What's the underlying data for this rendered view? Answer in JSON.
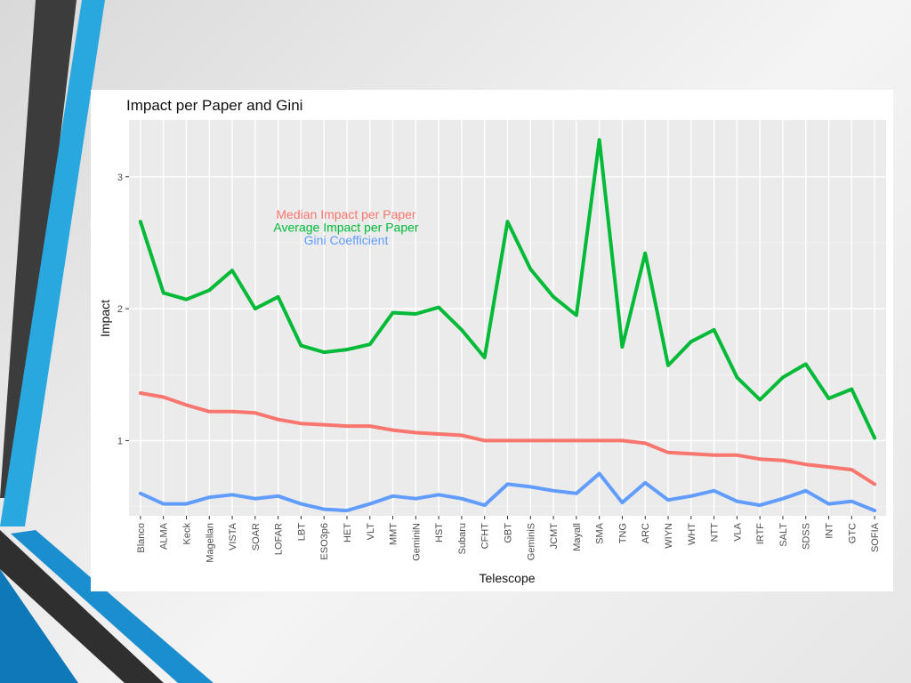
{
  "colors": {
    "median": "#F8766D",
    "average": "#00BA38",
    "gini": "#619CFF",
    "panel": "#EBEBEB",
    "accent_blue": "#29A8E0",
    "accent_dark": "#3C3C3C"
  },
  "chart_data": {
    "type": "line",
    "title": "Impact per Paper and Gini",
    "xlabel": "Telescope",
    "ylabel": "Impact",
    "ylim": [
      0.43,
      3.43
    ],
    "yticks": [
      1,
      2,
      3
    ],
    "grid": true,
    "legend_placement": "top-left-inside",
    "categories": [
      "Blanco",
      "ALMA",
      "Keck",
      "Magellan",
      "VISTA",
      "SOAR",
      "LOFAR",
      "LBT",
      "ESO3p6",
      "HET",
      "VLT",
      "MMT",
      "GeminiN",
      "HST",
      "Subaru",
      "CFHT",
      "GBT",
      "GeminiS",
      "JCMT",
      "Mayall",
      "SMA",
      "TNG",
      "ARC",
      "WIYN",
      "WHT",
      "NTT",
      "VLA",
      "IRTF",
      "SALT",
      "SDSS",
      "INT",
      "GTC",
      "SOFIA"
    ],
    "series": [
      {
        "name": "Median Impact per Paper",
        "color": "#F8766D",
        "values": [
          1.36,
          1.33,
          1.27,
          1.22,
          1.22,
          1.21,
          1.16,
          1.13,
          1.12,
          1.11,
          1.11,
          1.08,
          1.06,
          1.05,
          1.04,
          1.0,
          1.0,
          1.0,
          1.0,
          1.0,
          1.0,
          1.0,
          0.98,
          0.91,
          0.9,
          0.89,
          0.89,
          0.86,
          0.85,
          0.82,
          0.8,
          0.78,
          0.67
        ]
      },
      {
        "name": "Average Impact per Paper",
        "color": "#00BA38",
        "values": [
          2.66,
          2.12,
          2.07,
          2.14,
          2.29,
          2.0,
          2.09,
          1.72,
          1.67,
          1.69,
          1.73,
          1.97,
          1.96,
          2.01,
          1.84,
          1.63,
          2.66,
          2.3,
          2.09,
          1.95,
          3.28,
          1.71,
          2.42,
          1.57,
          1.75,
          1.84,
          1.48,
          1.31,
          1.48,
          1.58,
          1.32,
          1.39,
          1.02
        ]
      },
      {
        "name": "Gini Coefficient",
        "color": "#619CFF",
        "values": [
          0.6,
          0.52,
          0.52,
          0.57,
          0.59,
          0.56,
          0.58,
          0.52,
          0.48,
          0.47,
          0.52,
          0.58,
          0.56,
          0.59,
          0.56,
          0.51,
          0.67,
          0.65,
          0.62,
          0.6,
          0.75,
          0.53,
          0.68,
          0.55,
          0.58,
          0.62,
          0.54,
          0.51,
          0.56,
          0.62,
          0.52,
          0.54,
          0.47
        ]
      }
    ]
  }
}
